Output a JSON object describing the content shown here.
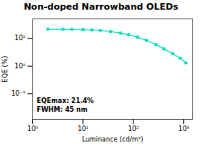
{
  "chart_data": {
    "type": "line",
    "title": "Non-doped Narrowband OLEDs",
    "xlabel": "Luminance (cd/m²)",
    "ylabel": "EQE (%)",
    "x": [
      2,
      4,
      6,
      10,
      15,
      22,
      35,
      55,
      80,
      120,
      180,
      280,
      400,
      600,
      850,
      1100
    ],
    "values": [
      21.4,
      21.2,
      21.0,
      20.6,
      20.0,
      19.2,
      17.5,
      15.5,
      13.5,
      11.0,
      8.5,
      6.0,
      4.2,
      2.8,
      1.9,
      1.3
    ],
    "color": "#00ddbb",
    "marker": "square",
    "line_style": "solid",
    "log": true,
    "xlim": [
      1,
      1500
    ],
    "xticks": [
      {
        "value": 1,
        "label": "10⁰"
      },
      {
        "value": 10,
        "label": "10¹"
      },
      {
        "value": 100,
        "label": "10²"
      },
      {
        "value": 1000,
        "label": "10³"
      }
    ],
    "ylim": [
      0.012,
      50
    ],
    "yticks": [
      {
        "value": 0.1,
        "label": "10⁻¹"
      },
      {
        "value": 1,
        "label": "10⁰"
      },
      {
        "value": 10,
        "label": "10¹"
      }
    ],
    "annotations": [
      "EQEmax: 21.4%",
      "FWHM: 45 nm"
    ],
    "grid": false
  }
}
